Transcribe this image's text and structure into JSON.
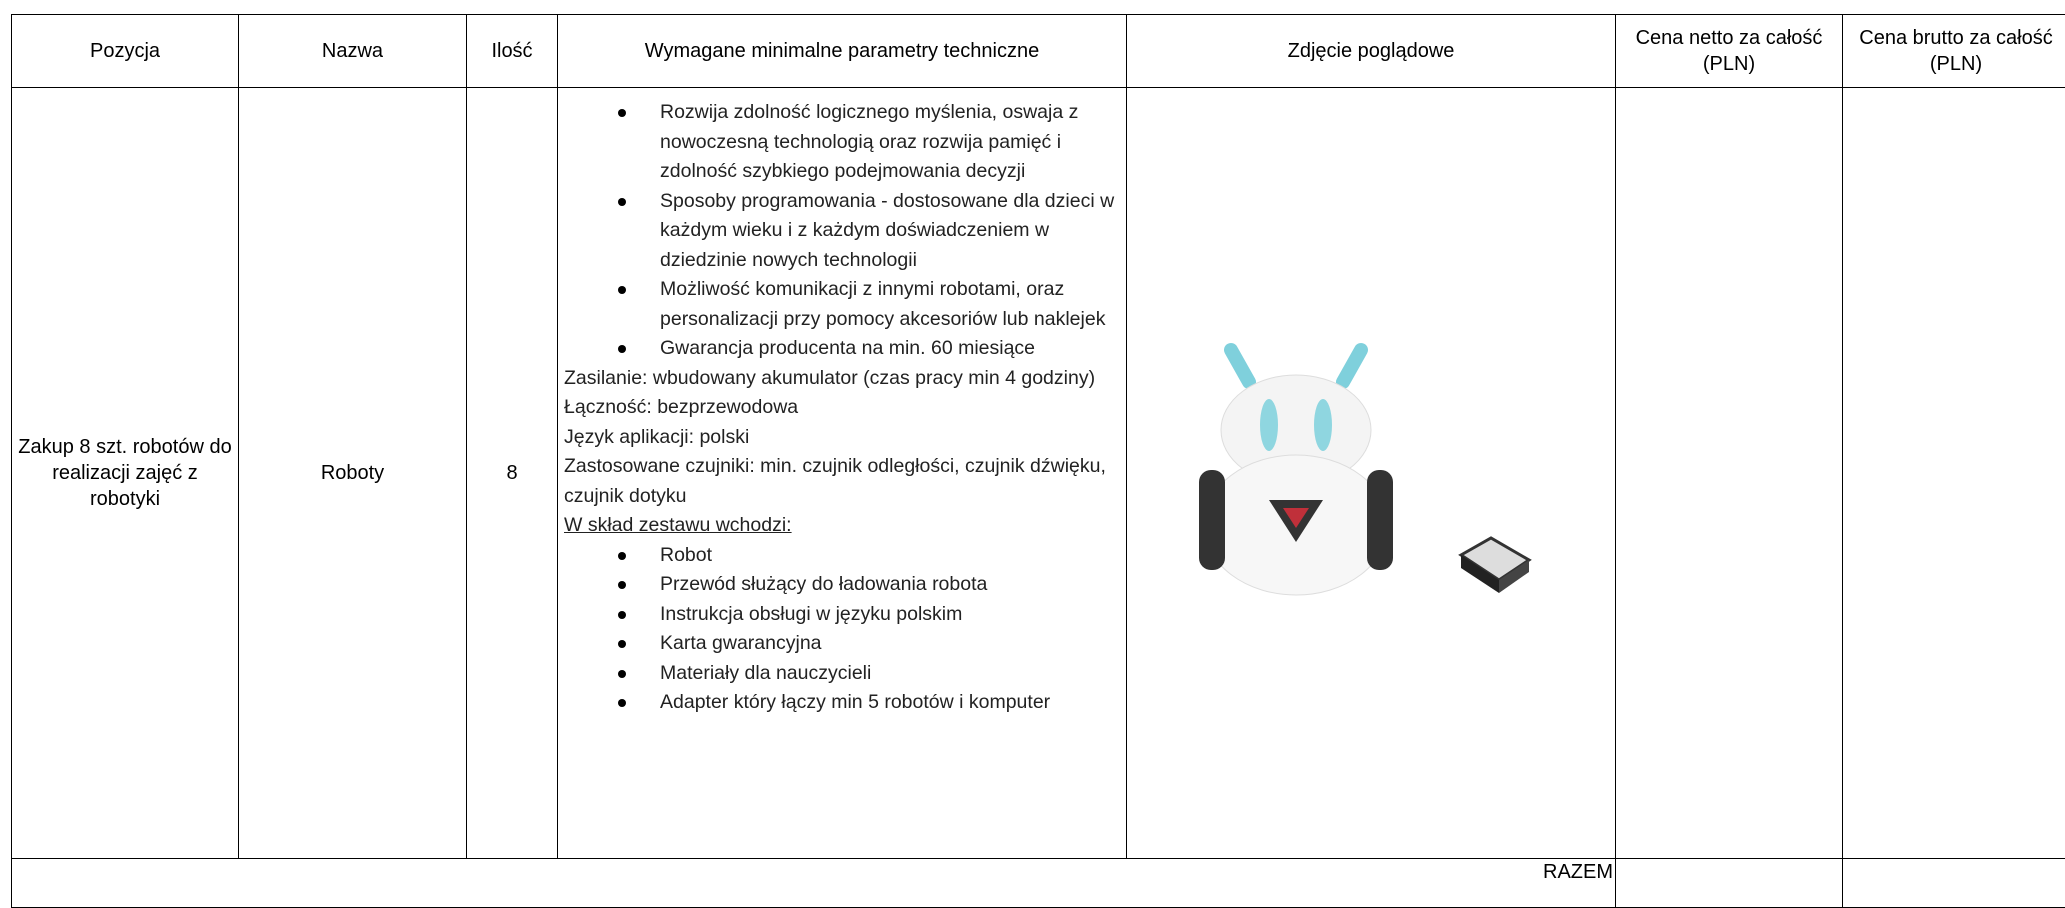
{
  "table": {
    "headers": [
      "Pozycja",
      "Nazwa",
      "Ilość",
      "Wymagane minimalne parametry techniczne",
      "Zdjęcie poglądowe",
      "Cena netto za całość (PLN)",
      "Cena brutto za całość (PLN)"
    ],
    "rows": [
      {
        "position": "Zakup 8 szt. robotów do realizacji zajęć z robotyki",
        "name": "Roboty",
        "quantity": 8,
        "features": [
          "Rozwija zdolność logicznego myślenia, oswaja z nowoczesną technologią oraz rozwija pamięć i zdolność szybkiego podejmowania decyzji",
          "Sposoby programowania - dostosowane dla dzieci w każdym wieku i z każdym doświadczeniem w dziedzinie nowych technologii",
          "Możliwość komunikacji z innymi robotami, oraz personalizacji przy pomocy akcesoriów lub naklejek",
          "Gwarancja producenta na min. 60 miesiące"
        ],
        "specs": [
          "Zasilanie: wbudowany akumulator (czas pracy min 4 godziny)",
          "Łączność: bezprzewodowa",
          "Język aplikacji: polski",
          "Zastosowane czujniki: min. czujnik odległości, czujnik dźwięku, czujnik dotyku"
        ],
        "set_heading": "W skład zestawu wchodzi:",
        "set_items": [
          "Robot",
          "Przewód służący do ładowania robota",
          "Instrukcja obsługi w języku polskim",
          "Karta gwarancyjna",
          "Materiały dla nauczycieli",
          "Adapter który łączy min 5 robotów i  komputer"
        ]
      }
    ],
    "total_label": "RAZEM"
  }
}
